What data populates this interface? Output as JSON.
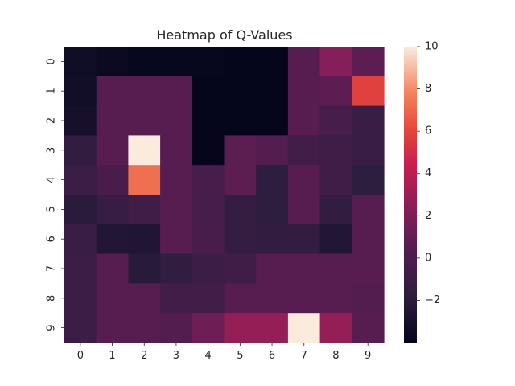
{
  "chart_data": {
    "type": "heatmap",
    "title": "Heatmap of Q-Values",
    "xlabel": "",
    "ylabel": "",
    "x_categories": [
      "0",
      "1",
      "2",
      "3",
      "4",
      "5",
      "6",
      "7",
      "8",
      "9"
    ],
    "y_categories": [
      "0",
      "1",
      "2",
      "3",
      "4",
      "5",
      "6",
      "7",
      "8",
      "9"
    ],
    "values": [
      [
        -3.3,
        -3.6,
        -3.8,
        -3.8,
        -3.8,
        -3.9,
        -3.9,
        0.5,
        2.3,
        0.8
      ],
      [
        -3.2,
        0.5,
        0.5,
        0.5,
        -3.9,
        -3.9,
        -3.9,
        0.5,
        0.8,
        5.8
      ],
      [
        -3.0,
        0.5,
        0.5,
        0.5,
        -3.9,
        -3.9,
        -3.9,
        0.5,
        -0.3,
        -1.1
      ],
      [
        -1.5,
        0.5,
        10.0,
        0.5,
        -3.9,
        0.7,
        0.3,
        -0.6,
        -0.8,
        -1.1
      ],
      [
        -0.9,
        -0.2,
        7.2,
        0.5,
        -0.2,
        0.7,
        -1.8,
        0.5,
        -0.7,
        -1.8
      ],
      [
        -2.0,
        -1.2,
        -0.7,
        0.5,
        -0.3,
        -1.3,
        -1.8,
        0.5,
        -1.6,
        0.5
      ],
      [
        -1.0,
        -2.4,
        -2.5,
        0.5,
        -0.2,
        -1.4,
        -1.5,
        -1.5,
        -2.4,
        0.5
      ],
      [
        -0.9,
        0.5,
        -2.1,
        -1.6,
        -0.9,
        -0.8,
        0.5,
        0.5,
        0.5,
        0.5
      ],
      [
        -0.9,
        0.5,
        0.5,
        -0.6,
        -0.6,
        0.5,
        0.5,
        0.5,
        0.5,
        0.3
      ],
      [
        -0.9,
        0.5,
        0.5,
        0.3,
        1.4,
        2.8,
        2.8,
        10.0,
        2.8,
        0.5
      ]
    ],
    "vmin": -4,
    "vmax": 10,
    "colormap": "rocket",
    "colorbar_ticks": [
      "10",
      "8",
      "6",
      "4",
      "2",
      "0",
      "−2"
    ],
    "colorbar_values": [
      10,
      8,
      6,
      4,
      2,
      0,
      -2
    ]
  }
}
